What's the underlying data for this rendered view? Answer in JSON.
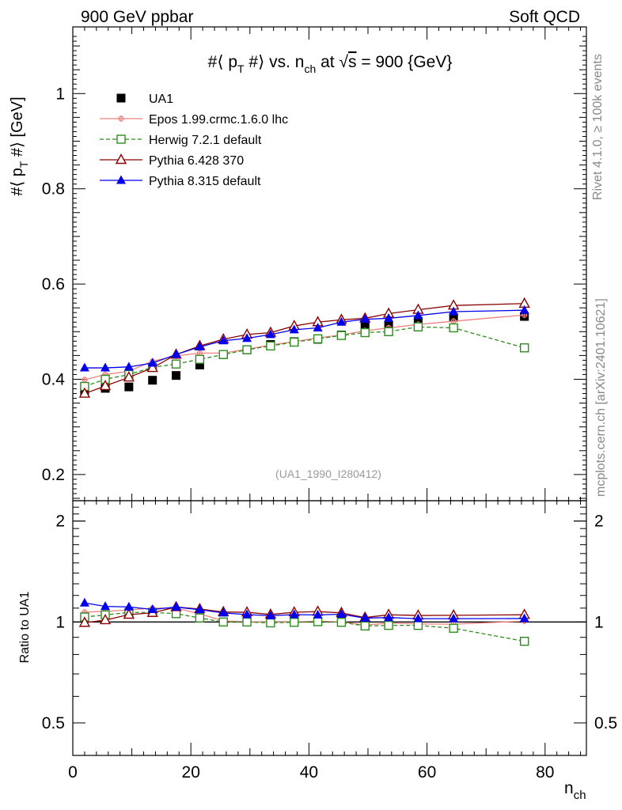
{
  "header": {
    "left": "900 GeV ppbar",
    "right": "Soft QCD"
  },
  "side_text": {
    "rivet": "Rivet 4.1.0, ≥ 100k events",
    "mcplots": "mcplots.cern.ch [arXiv:2401.10621]"
  },
  "colors": {
    "UA1": "#000000",
    "Epos": "#f08080",
    "Herwig": "#2e8b1e",
    "Pythia6": "#8b0000",
    "Pythia8": "#0000ee"
  },
  "chart_data": [
    {
      "type": "scatter",
      "title": "#⟨ p_T #⟩ vs. n_ch at √s = 900 {GeV}",
      "title_parts": {
        "a": "#⟨ p",
        "b": "T",
        "c": " #⟩ vs. n",
        "d": "ch",
        "e": " at ",
        "f": "√",
        "g": "s",
        "h": " = 900 {GeV}"
      },
      "ylabel": "#⟨ p_T #⟩ [GeV]",
      "ylabel_parts": {
        "a": "#⟨ p",
        "b": "T",
        "c": " #⟩ [GeV]"
      },
      "xlabel": "n_ch",
      "xlim": [
        0,
        87
      ],
      "ylim": [
        0.145,
        1.14
      ],
      "yticks": [
        "0.2",
        "0.4",
        "0.6",
        "0.8",
        "1"
      ],
      "reference": "(UA1_1990_I280412)",
      "x": [
        2,
        5.5,
        9.5,
        13.5,
        17.5,
        21.5,
        25.5,
        29.5,
        33.5,
        37.5,
        41.5,
        45.5,
        49.5,
        53.5,
        58.5,
        64.5,
        76.5
      ],
      "series": [
        {
          "name": "UA1",
          "key": "UA1",
          "marker": "filled-square",
          "values": [
            0.372,
            0.381,
            0.384,
            0.398,
            0.408,
            0.43,
            0.452,
            0.462,
            0.473,
            0.479,
            0.484,
            0.493,
            0.512,
            0.512,
            0.522,
            0.53,
            0.532
          ]
        },
        {
          "name": "Epos 1.99.crmc.1.6.0 lhc",
          "key": "Epos",
          "marker": "cross",
          "values": [
            0.399,
            0.41,
            0.417,
            0.438,
            0.449,
            0.455,
            0.455,
            0.463,
            0.472,
            0.479,
            0.487,
            0.493,
            0.502,
            0.508,
            0.515,
            0.522,
            0.535
          ]
        },
        {
          "name": "Herwig 7.2.1 default",
          "key": "Herwig",
          "marker": "open-square",
          "dashed": true,
          "values": [
            0.385,
            0.4,
            0.41,
            0.425,
            0.432,
            0.442,
            0.452,
            0.462,
            0.47,
            0.478,
            0.485,
            0.492,
            0.498,
            0.5,
            0.51,
            0.508,
            0.466
          ]
        },
        {
          "name": "Pythia 6.428 370",
          "key": "Pythia6",
          "marker": "open-triangle",
          "values": [
            0.37,
            0.386,
            0.404,
            0.424,
            0.452,
            0.47,
            0.484,
            0.494,
            0.498,
            0.512,
            0.52,
            0.525,
            0.528,
            0.538,
            0.546,
            0.555,
            0.559
          ]
        },
        {
          "name": "Pythia 8.315 default",
          "key": "Pythia8",
          "marker": "filled-triangle",
          "values": [
            0.424,
            0.424,
            0.426,
            0.434,
            0.452,
            0.468,
            0.481,
            0.486,
            0.494,
            0.504,
            0.508,
            0.52,
            0.526,
            0.528,
            0.534,
            0.542,
            0.545
          ]
        }
      ]
    },
    {
      "type": "scatter",
      "title": "",
      "ylabel": "Ratio to UA1",
      "xlabel": "n_ch",
      "xlim": [
        0,
        87
      ],
      "ylim": [
        0.4,
        2.3
      ],
      "ylog": true,
      "yticks": [
        "0.5",
        "1",
        "2"
      ],
      "xticks": [
        "0",
        "20",
        "40",
        "60",
        "80"
      ],
      "x": [
        2,
        5.5,
        9.5,
        13.5,
        17.5,
        21.5,
        25.5,
        29.5,
        33.5,
        37.5,
        41.5,
        45.5,
        49.5,
        53.5,
        58.5,
        64.5,
        76.5
      ],
      "series": [
        {
          "name": "Epos 1.99.crmc.1.6.0 lhc",
          "key": "Epos",
          "marker": "cross",
          "values": [
            1.07,
            1.076,
            1.086,
            1.1,
            1.1,
            1.058,
            1.007,
            1.002,
            0.998,
            1.0,
            1.006,
            1.0,
            0.98,
            0.992,
            0.987,
            0.985,
            1.006
          ]
        },
        {
          "name": "Herwig 7.2.1 default",
          "key": "Herwig",
          "marker": "open-square",
          "dashed": true,
          "values": [
            1.035,
            1.05,
            1.068,
            1.068,
            1.059,
            1.028,
            1.0,
            1.0,
            0.994,
            0.998,
            1.002,
            0.998,
            0.973,
            0.977,
            0.977,
            0.958,
            0.876
          ]
        },
        {
          "name": "Pythia 6.428 370",
          "key": "Pythia6",
          "marker": "open-triangle",
          "values": [
            0.995,
            1.013,
            1.052,
            1.065,
            1.108,
            1.093,
            1.071,
            1.069,
            1.053,
            1.069,
            1.074,
            1.065,
            1.031,
            1.051,
            1.046,
            1.047,
            1.051
          ]
        },
        {
          "name": "Pythia 8.315 default",
          "key": "Pythia8",
          "marker": "filled-triangle",
          "values": [
            1.14,
            1.113,
            1.109,
            1.09,
            1.108,
            1.088,
            1.064,
            1.052,
            1.044,
            1.052,
            1.05,
            1.055,
            1.027,
            1.031,
            1.023,
            1.023,
            1.024
          ]
        }
      ]
    }
  ]
}
